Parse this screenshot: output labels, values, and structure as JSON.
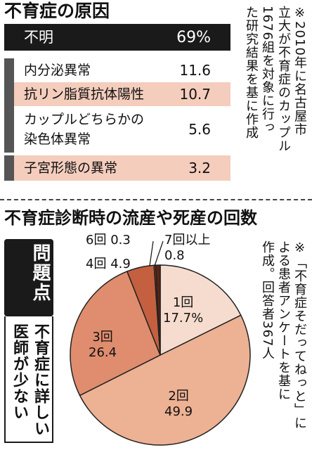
{
  "causes": {
    "title": "不育症の原因",
    "note": "※2010年に名古屋市\n立大が不育症のカップル\n1676組を対象に行っ\nた研究結果を基に作成",
    "chart_data": {
      "type": "table",
      "rows": [
        {
          "label": "不明",
          "value": "69%"
        },
        {
          "label": "内分泌異常",
          "value": "11.6"
        },
        {
          "label": "抗リン脂質抗体陽性",
          "value": "10.7"
        },
        {
          "label": "カップルどちらかの\n染色体異常",
          "value": "5.6"
        },
        {
          "label": "子宮形態の異常",
          "value": "3.2"
        }
      ]
    }
  },
  "pie": {
    "title": "不育症診断時の流産や死産の回数",
    "note": "※「不育症そだってねっと」に\nよる患者アンケートを基に\n作成。回答者367人",
    "chart_data": {
      "type": "pie",
      "slices": [
        {
          "label": "1回",
          "value": 17.7,
          "display": "17.7%",
          "color": "#f6dccf"
        },
        {
          "label": "2回",
          "value": 49.9,
          "display": "49.9",
          "color": "#edb193"
        },
        {
          "label": "3回",
          "value": 26.4,
          "display": "26.4",
          "color": "#df8d6e"
        },
        {
          "label": "4回",
          "value": 4.9,
          "display": "4.9",
          "color": "#c4603f"
        },
        {
          "label": "6回",
          "value": 0.3,
          "display": "0.3",
          "color": "#8e3a22"
        },
        {
          "label": "7回以上",
          "value": 0.8,
          "display": "0.8",
          "color": "#5a2414"
        }
      ]
    }
  },
  "sidebar": {
    "heading": "問題点",
    "text": "不育症に詳しい\n医師が少ない"
  }
}
